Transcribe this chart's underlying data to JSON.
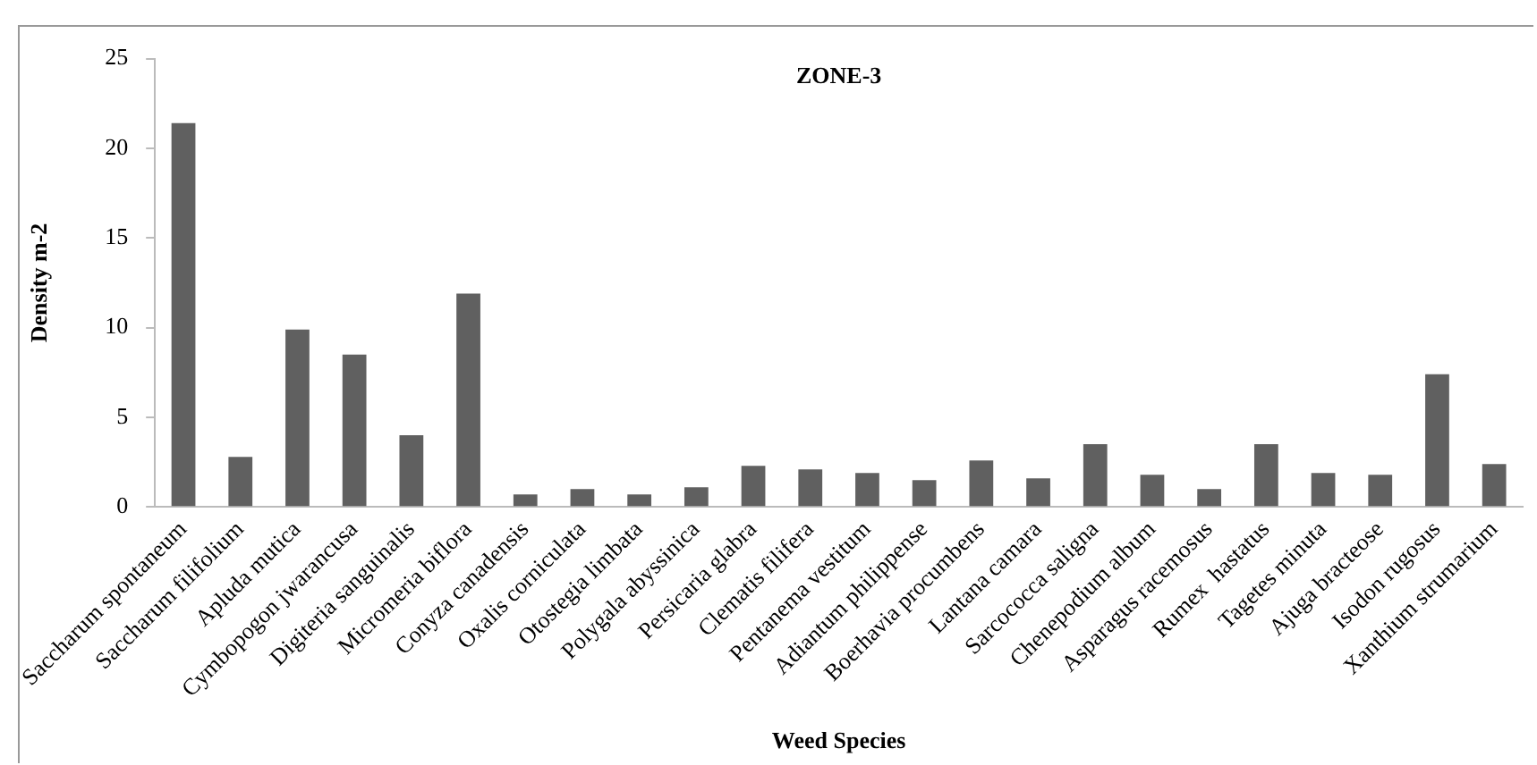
{
  "chart_data": {
    "type": "bar",
    "title": "ZONE-3",
    "xlabel": "Weed Species",
    "ylabel": "Density m-2",
    "categories": [
      "Saccharum spontaneum",
      "Saccharum filifolium",
      "Apluda mutica",
      "Cymbopogon jwarancusa",
      "Digiteria sanguinalis",
      "Micromeria biflora",
      "Conyza canadensis",
      "Oxalis corniculata",
      "Otostegia limbata",
      "Polygala abyssinica",
      "Persicaria glabra",
      "Clematis filifera",
      "Pentanema vestitum",
      "Adiantum philippense",
      "Boerhavia procumbens",
      "Lantana camara",
      "Sarcococca saligna",
      "Chenepodium album",
      "Asparagus racemosus",
      "Rumex  hastatus",
      "Tagetes minuta",
      "Ajuga bracteose",
      "Isodon rugosus",
      "Xanthium strumarium"
    ],
    "values": [
      21.4,
      2.8,
      9.9,
      8.5,
      4.0,
      11.9,
      0.7,
      1.0,
      0.7,
      1.1,
      2.3,
      2.1,
      1.9,
      1.5,
      2.6,
      1.6,
      3.5,
      1.8,
      1.0,
      3.5,
      1.9,
      1.8,
      7.4,
      2.4
    ],
    "color": "#606060",
    "ylim": [
      0,
      25
    ],
    "yticks": [
      0,
      5,
      10,
      15,
      20,
      25
    ],
    "grid": false,
    "legend": false
  }
}
